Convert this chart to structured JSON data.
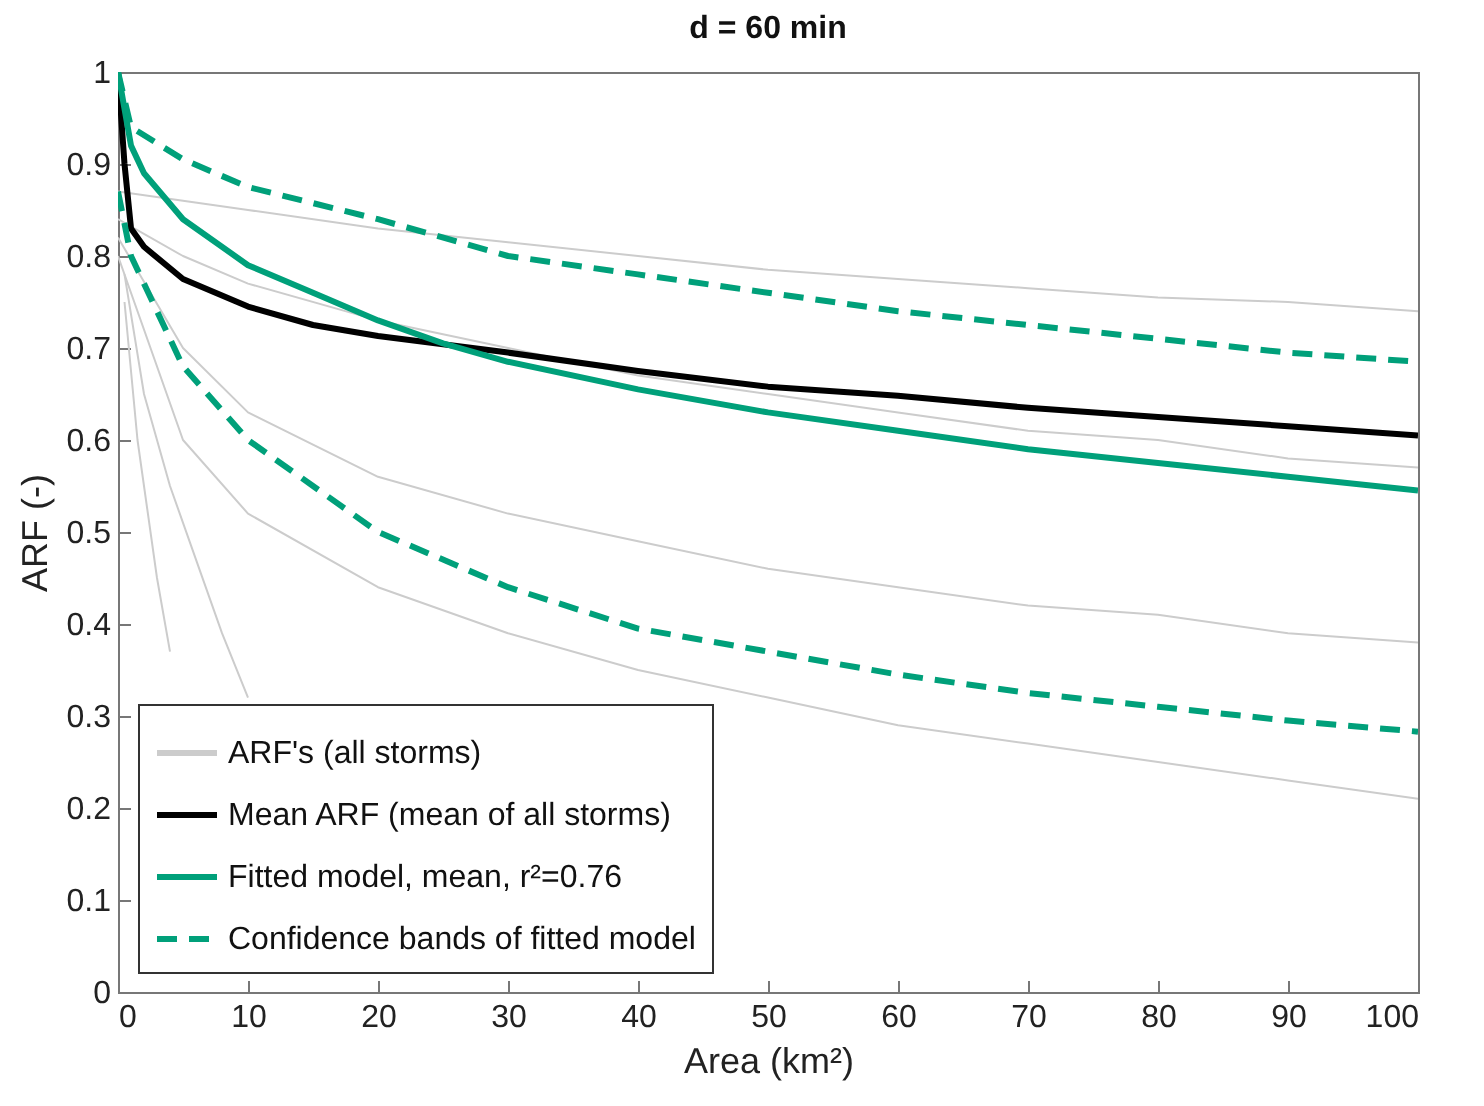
{
  "chart_data": {
    "type": "line",
    "title": "d = 60 min",
    "xlabel": "Area (km²)",
    "ylabel": "ARF (-)",
    "xlim": [
      0,
      100
    ],
    "xticks": [
      0,
      10,
      20,
      30,
      40,
      50,
      60,
      70,
      80,
      90,
      100
    ],
    "ylim": [
      0,
      1
    ],
    "yticks": [
      0,
      0.1,
      0.2,
      0.3,
      0.4,
      0.5,
      0.6,
      0.7,
      0.8,
      0.9,
      1
    ],
    "grid": false,
    "legend": "bottom left",
    "marker": "none",
    "series": [
      {
        "name": "ARF's (all storms)",
        "color": "#cccccc",
        "line_style": "solid",
        "x": [
          0,
          5,
          10,
          20,
          30,
          40,
          50,
          60,
          70,
          80,
          90,
          100
        ],
        "values": [
          0.87,
          0.86,
          0.85,
          0.83,
          0.815,
          0.8,
          0.785,
          0.775,
          0.765,
          0.755,
          0.75,
          0.74
        ]
      },
      {
        "color": "#cccccc",
        "line_style": "solid",
        "x": [
          0,
          5,
          10,
          20,
          30,
          40,
          50,
          60,
          70,
          80,
          90,
          100
        ],
        "values": [
          0.84,
          0.8,
          0.77,
          0.73,
          0.7,
          0.67,
          0.65,
          0.63,
          0.61,
          0.6,
          0.58,
          0.57
        ]
      },
      {
        "color": "#cccccc",
        "line_style": "solid",
        "x": [
          0,
          5,
          10,
          20,
          30,
          40,
          50,
          60,
          70,
          80,
          90,
          100
        ],
        "values": [
          0.82,
          0.7,
          0.63,
          0.56,
          0.52,
          0.49,
          0.46,
          0.44,
          0.42,
          0.41,
          0.39,
          0.38
        ]
      },
      {
        "color": "#cccccc",
        "line_style": "solid",
        "x": [
          0,
          5,
          10,
          20,
          30,
          40,
          50,
          60,
          70,
          80,
          90,
          100
        ],
        "values": [
          0.8,
          0.6,
          0.52,
          0.44,
          0.39,
          0.35,
          0.32,
          0.29,
          0.27,
          0.25,
          0.23,
          0.21
        ]
      },
      {
        "color": "#cccccc",
        "line_style": "solid",
        "x": [
          0.5,
          2,
          4,
          6,
          8,
          10
        ],
        "values": [
          0.78,
          0.65,
          0.55,
          0.47,
          0.39,
          0.32
        ]
      },
      {
        "color": "#cccccc",
        "line_style": "solid",
        "x": [
          0.5,
          1.5,
          3,
          4
        ],
        "values": [
          0.75,
          0.6,
          0.45,
          0.37
        ]
      },
      {
        "name": "Mean ARF (mean of all storms)",
        "color": "#000000",
        "line_style": "solid",
        "x": [
          0,
          0.5,
          1,
          2,
          5,
          10,
          15,
          20,
          30,
          40,
          50,
          60,
          70,
          80,
          90,
          100
        ],
        "values": [
          1.0,
          0.9,
          0.83,
          0.81,
          0.775,
          0.745,
          0.725,
          0.713,
          0.695,
          0.675,
          0.658,
          0.648,
          0.635,
          0.625,
          0.615,
          0.605
        ]
      },
      {
        "name": "Fitted model, mean, r²=0.76",
        "color": "#00a07a",
        "line_style": "solid",
        "x": [
          0,
          1,
          2,
          5,
          10,
          15,
          20,
          25,
          30,
          40,
          50,
          60,
          70,
          80,
          90,
          100
        ],
        "values": [
          1.0,
          0.92,
          0.89,
          0.84,
          0.79,
          0.76,
          0.73,
          0.705,
          0.685,
          0.655,
          0.63,
          0.61,
          0.59,
          0.575,
          0.56,
          0.545
        ]
      },
      {
        "name": "Confidence bands of fitted model",
        "color": "#00a07a",
        "line_style": "dashed",
        "x": [
          0,
          1,
          5,
          10,
          20,
          30,
          40,
          50,
          60,
          70,
          80,
          90,
          100
        ],
        "values": [
          1.0,
          0.94,
          0.905,
          0.875,
          0.84,
          0.8,
          0.78,
          0.76,
          0.74,
          0.725,
          0.71,
          0.695,
          0.685
        ]
      },
      {
        "color": "#00a07a",
        "line_style": "dashed",
        "x": [
          0,
          1,
          2,
          5,
          10,
          15,
          20,
          30,
          40,
          50,
          60,
          70,
          80,
          90,
          100
        ],
        "values": [
          0.87,
          0.8,
          0.77,
          0.68,
          0.6,
          0.55,
          0.5,
          0.44,
          0.395,
          0.37,
          0.345,
          0.325,
          0.31,
          0.295,
          0.283
        ]
      }
    ]
  }
}
